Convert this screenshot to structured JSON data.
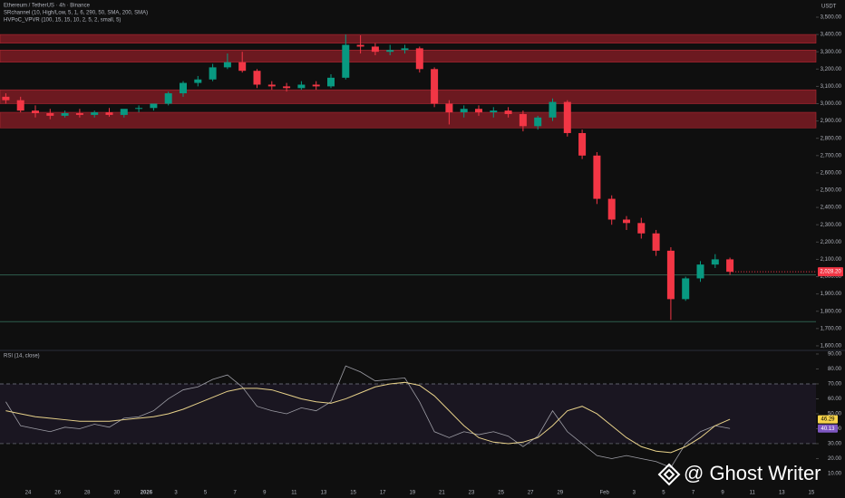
{
  "chart_data": [
    {
      "type": "candlestick",
      "title": "Ethereum / TetherUS · 4h · Binance",
      "indicators": [
        "SRchannel (10, High/Low, 5, 1, 6, 290, 50, SMA, 200, SMA)",
        "HVPoC_VPVR (100, 15, 15, 10, 2, 5, 2, small, 5)"
      ],
      "unit": "USDT",
      "categories": [
        null,
        null,
        "24",
        null,
        "26",
        null,
        "28",
        null,
        "30",
        null,
        "2026",
        null,
        "3",
        null,
        "5",
        null,
        "7",
        null,
        "9",
        null,
        "11",
        null,
        "13",
        null,
        "15",
        null,
        "17",
        null,
        "19",
        null,
        "21",
        null,
        "23",
        null,
        "25",
        null,
        "27",
        null,
        "29",
        null,
        null,
        "Feb",
        null,
        "3",
        null,
        "5",
        null,
        "7",
        null,
        "9",
        null,
        "11",
        null,
        "13",
        null,
        "15"
      ],
      "open": [
        3040,
        3020,
        2960,
        2945,
        2930,
        2945,
        2935,
        2950,
        2935,
        2970,
        2975,
        3000,
        3060,
        3120,
        3140,
        3210,
        3240,
        3190,
        3110,
        3100,
        3090,
        3110,
        3100,
        3150,
        3340,
        3330,
        3300,
        3310,
        3320,
        3200,
        3000,
        2950,
        2970,
        2950,
        2960,
        2940,
        2870,
        2920,
        3010,
        2830,
        2700,
        2450,
        2330,
        2310,
        2250,
        2150,
        1870,
        1990,
        2070,
        2100,
        null,
        null,
        null,
        null,
        null,
        null
      ],
      "high": [
        3060,
        3040,
        2990,
        2970,
        2960,
        2970,
        2960,
        2975,
        2960,
        2990,
        3000,
        3070,
        3130,
        3160,
        3230,
        3290,
        3300,
        3200,
        3130,
        3120,
        3130,
        3130,
        3170,
        3400,
        3395,
        3350,
        3340,
        3340,
        3330,
        3210,
        3020,
        2990,
        2990,
        2980,
        2980,
        2960,
        2930,
        3030,
        3020,
        2850,
        2720,
        2470,
        2350,
        2340,
        2270,
        2170,
        2000,
        2090,
        2130,
        2110,
        null,
        null,
        null,
        null,
        null,
        null
      ],
      "low": [
        3000,
        2950,
        2920,
        2910,
        2920,
        2920,
        2920,
        2925,
        2920,
        2950,
        2960,
        2990,
        3040,
        3100,
        3130,
        3200,
        3180,
        3090,
        3080,
        3070,
        3080,
        3080,
        3090,
        3140,
        3290,
        3280,
        3280,
        3290,
        3180,
        2980,
        2880,
        2920,
        2930,
        2920,
        2920,
        2840,
        2850,
        2900,
        2810,
        2680,
        2420,
        2300,
        2270,
        2220,
        2120,
        1750,
        1860,
        1970,
        2050,
        2010,
        null,
        null,
        null,
        null,
        null,
        null
      ],
      "close": [
        3020,
        2960,
        2945,
        2930,
        2945,
        2935,
        2950,
        2935,
        2970,
        2975,
        3000,
        3060,
        3120,
        3140,
        3210,
        3240,
        3190,
        3110,
        3100,
        3090,
        3110,
        3100,
        3150,
        3340,
        3330,
        3300,
        3310,
        3320,
        3200,
        3000,
        2950,
        2970,
        2950,
        2960,
        2940,
        2870,
        2920,
        3010,
        2830,
        2700,
        2450,
        2330,
        2310,
        2250,
        2150,
        1870,
        1990,
        2070,
        2100,
        2028.2,
        null,
        null,
        null,
        null,
        null,
        null
      ],
      "last_label": "2,028.20",
      "up_color": "#089981",
      "down_color": "#f23645",
      "zones": [
        {
          "low": 3350,
          "high": 3400
        },
        {
          "low": 3240,
          "high": 3310
        },
        {
          "low": 3000,
          "high": 3080
        },
        {
          "low": 2860,
          "high": 2950
        }
      ],
      "zone_color": "#8c1d27",
      "levels": [
        2010,
        1740
      ],
      "level_color": "#2e5e4e",
      "ylim": [
        1584,
        3547
      ],
      "yticks": [
        {
          "value": 3500,
          "label": "3,500.00"
        },
        {
          "value": 3400,
          "label": "3,400.00"
        },
        {
          "value": 3300,
          "label": "3,300.00"
        },
        {
          "value": 3200,
          "label": "3,200.00"
        },
        {
          "value": 3100,
          "label": "3,100.00"
        },
        {
          "value": 3000,
          "label": "3,000.00"
        },
        {
          "value": 2900,
          "label": "2,900.00"
        },
        {
          "value": 2800,
          "label": "2,800.00"
        },
        {
          "value": 2700,
          "label": "2,700.00"
        },
        {
          "value": 2600,
          "label": "2,600.00"
        },
        {
          "value": 2500,
          "label": "2,500.00"
        },
        {
          "value": 2400,
          "label": "2,400.00"
        },
        {
          "value": 2300,
          "label": "2,300.00"
        },
        {
          "value": 2200,
          "label": "2,200.00"
        },
        {
          "value": 2100,
          "label": "2,100.00"
        },
        {
          "value": 2000,
          "label": "2,000.00"
        },
        {
          "value": 1900,
          "label": "1,900.00"
        },
        {
          "value": 1800,
          "label": "1,800.00"
        },
        {
          "value": 1700,
          "label": "1,700.00"
        },
        {
          "value": 1600,
          "label": "1,600.00"
        }
      ]
    },
    {
      "type": "line",
      "title": "RSI (14, close)",
      "series": [
        {
          "color": "#9e9ea6",
          "values": [
            58,
            42,
            40,
            38,
            41,
            40,
            43,
            41,
            47,
            48,
            52,
            60,
            66,
            68,
            73,
            76,
            68,
            55,
            52,
            50,
            54,
            52,
            58,
            82,
            78,
            72,
            73,
            74,
            58,
            38,
            34,
            38,
            36,
            38,
            35,
            28,
            35,
            52,
            38,
            30,
            22,
            20,
            22,
            20,
            18,
            14,
            30,
            38,
            42,
            40.13
          ],
          "last_label": "40.13",
          "tag_color": "#7e57c2"
        },
        {
          "color": "#e8d28a",
          "values": [
            52,
            50,
            48,
            47,
            46,
            45,
            45,
            45,
            46,
            47,
            48,
            50,
            53,
            57,
            61,
            65,
            67,
            67,
            66,
            63,
            60,
            58,
            57,
            60,
            64,
            68,
            70,
            71,
            69,
            62,
            52,
            42,
            34,
            31,
            30,
            31,
            34,
            42,
            52,
            55,
            50,
            42,
            34,
            28,
            25,
            24,
            28,
            34,
            42,
            46.29
          ],
          "last_label": "46.29",
          "tag_color": "#f7d34a"
        }
      ],
      "bands": [
        30,
        70
      ],
      "ylim": [
        2.7,
        91.8
      ],
      "yticks": [
        {
          "value": 90,
          "label": "90.00"
        },
        {
          "value": 80,
          "label": "80.00"
        },
        {
          "value": 70,
          "label": "70.00"
        },
        {
          "value": 60,
          "label": "60.00"
        },
        {
          "value": 50,
          "label": "50.00"
        },
        {
          "value": 40,
          "label": "40.00"
        },
        {
          "value": 30,
          "label": "30.00"
        },
        {
          "value": 20,
          "label": "20.00"
        },
        {
          "value": 10,
          "label": "10.00"
        }
      ]
    }
  ],
  "watermark": "@ Ghost Writer"
}
